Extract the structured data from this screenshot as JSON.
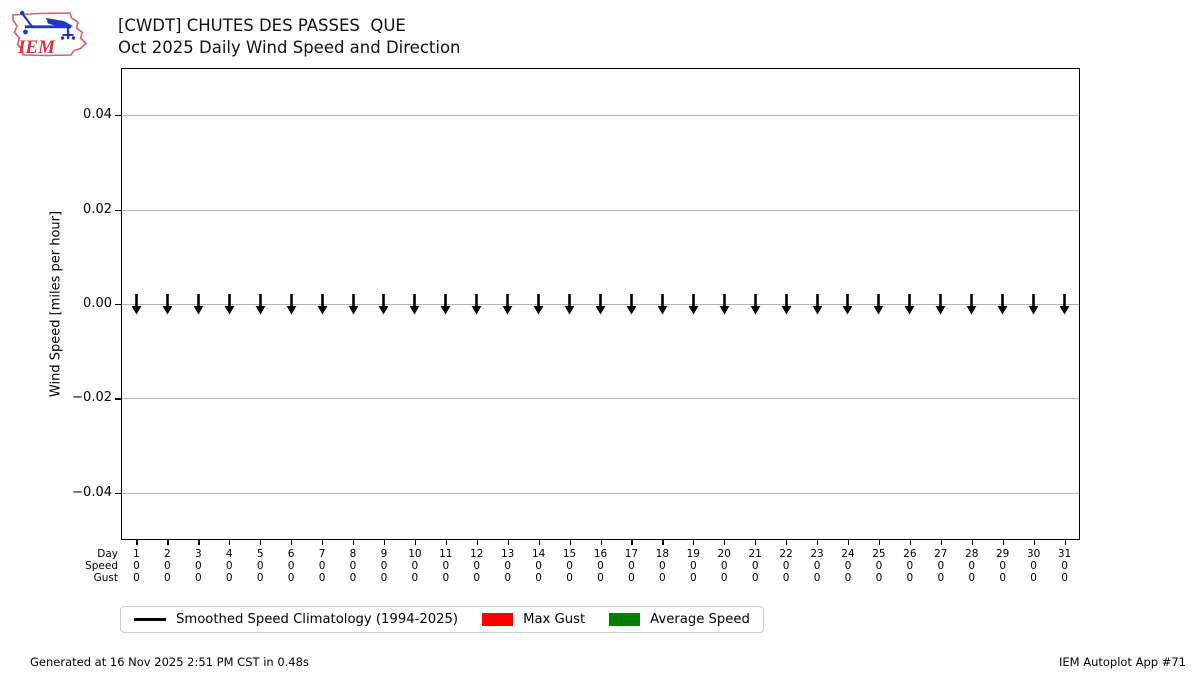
{
  "header": {
    "title_line1": "[CWDT] CHUTES DES PASSES  QUE",
    "title_line2": "Oct 2025 Daily Wind Speed and Direction",
    "logo_text": "IEM"
  },
  "chart_data": {
    "type": "scatter",
    "subtype": "daily-wind-direction-arrow-plot",
    "title": "[CWDT] CHUTES DES PASSES  QUE",
    "subtitle": "Oct 2025 Daily Wind Speed and Direction",
    "xlabel": "",
    "ylabel": "Wind Speed [miles per hour]",
    "ylim": [
      -0.05,
      0.05
    ],
    "xlim": [
      0.5,
      31.5
    ],
    "grid": "horizontal",
    "yticks": [
      {
        "value": 0.04,
        "label": "0.04"
      },
      {
        "value": 0.02,
        "label": "0.02"
      },
      {
        "value": 0.0,
        "label": "0.00"
      },
      {
        "value": -0.02,
        "label": "−0.02"
      },
      {
        "value": -0.04,
        "label": "−0.04"
      }
    ],
    "days": [
      1,
      2,
      3,
      4,
      5,
      6,
      7,
      8,
      9,
      10,
      11,
      12,
      13,
      14,
      15,
      16,
      17,
      18,
      19,
      20,
      21,
      22,
      23,
      24,
      25,
      26,
      27,
      28,
      29,
      30,
      31
    ],
    "x_row_labels": [
      "Day",
      "Speed",
      "Gust"
    ],
    "series": [
      {
        "name": "Speed",
        "color": "#008000",
        "values": [
          0,
          0,
          0,
          0,
          0,
          0,
          0,
          0,
          0,
          0,
          0,
          0,
          0,
          0,
          0,
          0,
          0,
          0,
          0,
          0,
          0,
          0,
          0,
          0,
          0,
          0,
          0,
          0,
          0,
          0,
          0
        ]
      },
      {
        "name": "Gust",
        "color": "#ff0000",
        "values": [
          0,
          0,
          0,
          0,
          0,
          0,
          0,
          0,
          0,
          0,
          0,
          0,
          0,
          0,
          0,
          0,
          0,
          0,
          0,
          0,
          0,
          0,
          0,
          0,
          0,
          0,
          0,
          0,
          0,
          0,
          0
        ]
      }
    ],
    "wind_arrows": {
      "glyph": "↓",
      "direction": "down",
      "count": 31,
      "y_value": 0
    }
  },
  "legend": {
    "items": [
      {
        "label": "Smoothed Speed Climatology (1994-2025)",
        "type": "line",
        "color": "#000000"
      },
      {
        "label": "Max Gust",
        "type": "patch",
        "color": "#ff0000"
      },
      {
        "label": "Average Speed",
        "type": "patch",
        "color": "#008000"
      }
    ]
  },
  "footer": {
    "generated": "Generated at 16 Nov 2025 2:51 PM CST in 0.48s",
    "app": "IEM Autoplot App #71"
  },
  "colors": {
    "grid": "#b4b4b4",
    "axis": "#000000",
    "arrow": "#000000",
    "legend_border": "#cccccc",
    "logo_red": "#d6333f",
    "logo_blue": "#1f36c0"
  }
}
